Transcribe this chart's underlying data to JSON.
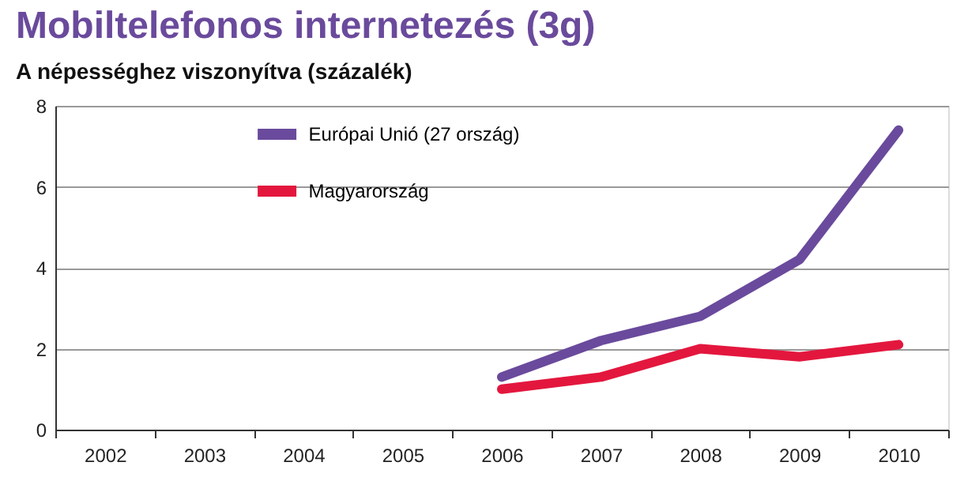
{
  "chart_data": {
    "type": "line",
    "title": "Mobiltelefonos internetezés (3g)",
    "subtitle": "A népességhez viszonyítva (százalék)",
    "categories": [
      "2002",
      "2003",
      "2004",
      "2005",
      "2006",
      "2007",
      "2008",
      "2009",
      "2010"
    ],
    "series": [
      {
        "name": "Európai Unió (27 ország)",
        "color": "#6a4a9c",
        "values": [
          null,
          null,
          null,
          null,
          1.3,
          2.2,
          2.8,
          4.2,
          7.4
        ]
      },
      {
        "name": "Magyarország",
        "color": "#e3173e",
        "values": [
          null,
          null,
          null,
          null,
          1.0,
          1.3,
          2.0,
          1.8,
          2.1
        ]
      }
    ],
    "ylim": [
      0,
      8
    ],
    "yticks": [
      0,
      2,
      4,
      6,
      8
    ],
    "grid": "y",
    "legend": "top",
    "marker": "none",
    "line_style": "solid"
  }
}
